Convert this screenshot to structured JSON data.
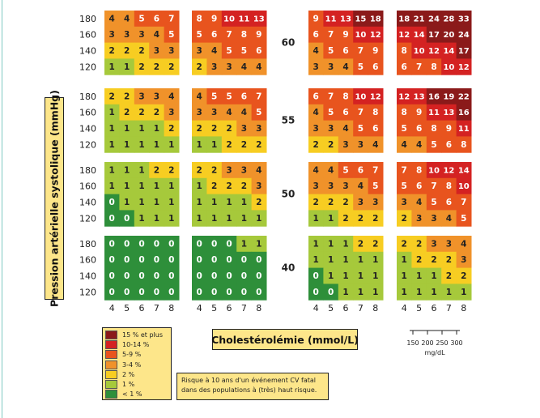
{
  "y_axis_label": "Pression artérielle systolique (mmHg)",
  "x_axis_label": "Cholestérolémie (mmol/L)",
  "note": "Risque à 10 ans d'un événement CV fatal dans des populations à (très) haut risque.",
  "cholesterol_scale": {
    "ticks": [
      "150",
      "200",
      "250",
      "300"
    ],
    "unit": "mg/dL"
  },
  "legend": [
    {
      "label": "15 % et plus",
      "color": "#8b1a1a"
    },
    {
      "label": "10-14 %",
      "color": "#d42222"
    },
    {
      "label": "5-9 %",
      "color": "#e8541e"
    },
    {
      "label": "3-4 %",
      "color": "#f0922a"
    },
    {
      "label": "2 %",
      "color": "#f7cd22"
    },
    {
      "label": "1 %",
      "color": "#a6c93b"
    },
    {
      "label": "< 1 %",
      "color": "#2e8f3a"
    }
  ],
  "chart_data": {
    "type": "heatmap",
    "x_ticks": [
      "4",
      "5",
      "6",
      "7",
      "8"
    ],
    "y_ticks": [
      "180",
      "160",
      "140",
      "120"
    ],
    "age_labels": [
      "60",
      "55",
      "50",
      "40"
    ],
    "grids": [
      [
        [
          [
            4,
            4,
            5,
            6,
            7
          ],
          [
            3,
            3,
            3,
            4,
            5
          ],
          [
            2,
            2,
            2,
            3,
            3
          ],
          [
            1,
            1,
            2,
            2,
            2
          ]
        ],
        [
          [
            8,
            9,
            10,
            11,
            13
          ],
          [
            5,
            6,
            7,
            8,
            9
          ],
          [
            3,
            4,
            5,
            5,
            6
          ],
          [
            2,
            3,
            3,
            4,
            4
          ]
        ],
        [
          [
            9,
            11,
            13,
            15,
            18
          ],
          [
            6,
            7,
            9,
            10,
            12
          ],
          [
            4,
            5,
            6,
            7,
            9
          ],
          [
            3,
            3,
            4,
            5,
            6
          ]
        ],
        [
          [
            18,
            21,
            24,
            28,
            33
          ],
          [
            12,
            14,
            17,
            20,
            24
          ],
          [
            8,
            10,
            12,
            14,
            17
          ],
          [
            6,
            7,
            8,
            10,
            12
          ]
        ]
      ],
      [
        [
          [
            2,
            2,
            3,
            3,
            4
          ],
          [
            1,
            2,
            2,
            2,
            3
          ],
          [
            1,
            1,
            1,
            1,
            2
          ],
          [
            1,
            1,
            1,
            1,
            1
          ]
        ],
        [
          [
            4,
            5,
            5,
            6,
            7
          ],
          [
            3,
            3,
            4,
            4,
            5
          ],
          [
            2,
            2,
            2,
            3,
            3
          ],
          [
            1,
            1,
            2,
            2,
            2
          ]
        ],
        [
          [
            6,
            7,
            8,
            10,
            12
          ],
          [
            4,
            5,
            6,
            7,
            8
          ],
          [
            3,
            3,
            4,
            5,
            6
          ],
          [
            2,
            2,
            3,
            3,
            4
          ]
        ],
        [
          [
            12,
            13,
            16,
            19,
            22
          ],
          [
            8,
            9,
            11,
            13,
            16
          ],
          [
            5,
            6,
            8,
            9,
            11
          ],
          [
            4,
            4,
            5,
            6,
            8
          ]
        ]
      ],
      [
        [
          [
            1,
            1,
            1,
            2,
            2
          ],
          [
            1,
            1,
            1,
            1,
            1
          ],
          [
            0,
            1,
            1,
            1,
            1
          ],
          [
            0,
            0,
            1,
            1,
            1
          ]
        ],
        [
          [
            2,
            2,
            3,
            3,
            4
          ],
          [
            1,
            2,
            2,
            2,
            3
          ],
          [
            1,
            1,
            1,
            1,
            2
          ],
          [
            1,
            1,
            1,
            1,
            1
          ]
        ],
        [
          [
            4,
            4,
            5,
            6,
            7
          ],
          [
            3,
            3,
            3,
            4,
            5
          ],
          [
            2,
            2,
            2,
            3,
            3
          ],
          [
            1,
            1,
            2,
            2,
            2
          ]
        ],
        [
          [
            7,
            8,
            10,
            12,
            14
          ],
          [
            5,
            6,
            7,
            8,
            10
          ],
          [
            3,
            4,
            5,
            6,
            7
          ],
          [
            2,
            3,
            3,
            4,
            5
          ]
        ]
      ],
      [
        [
          [
            0,
            0,
            0,
            0,
            0
          ],
          [
            0,
            0,
            0,
            0,
            0
          ],
          [
            0,
            0,
            0,
            0,
            0
          ],
          [
            0,
            0,
            0,
            0,
            0
          ]
        ],
        [
          [
            0,
            0,
            0,
            1,
            1
          ],
          [
            0,
            0,
            0,
            0,
            0
          ],
          [
            0,
            0,
            0,
            0,
            0
          ],
          [
            0,
            0,
            0,
            0,
            0
          ]
        ],
        [
          [
            1,
            1,
            1,
            2,
            2
          ],
          [
            1,
            1,
            1,
            1,
            1
          ],
          [
            0,
            1,
            1,
            1,
            1
          ],
          [
            0,
            0,
            1,
            1,
            1
          ]
        ],
        [
          [
            2,
            2,
            3,
            3,
            4
          ],
          [
            1,
            2,
            2,
            2,
            3
          ],
          [
            1,
            1,
            1,
            2,
            2
          ],
          [
            1,
            1,
            1,
            1,
            1
          ]
        ]
      ]
    ]
  }
}
